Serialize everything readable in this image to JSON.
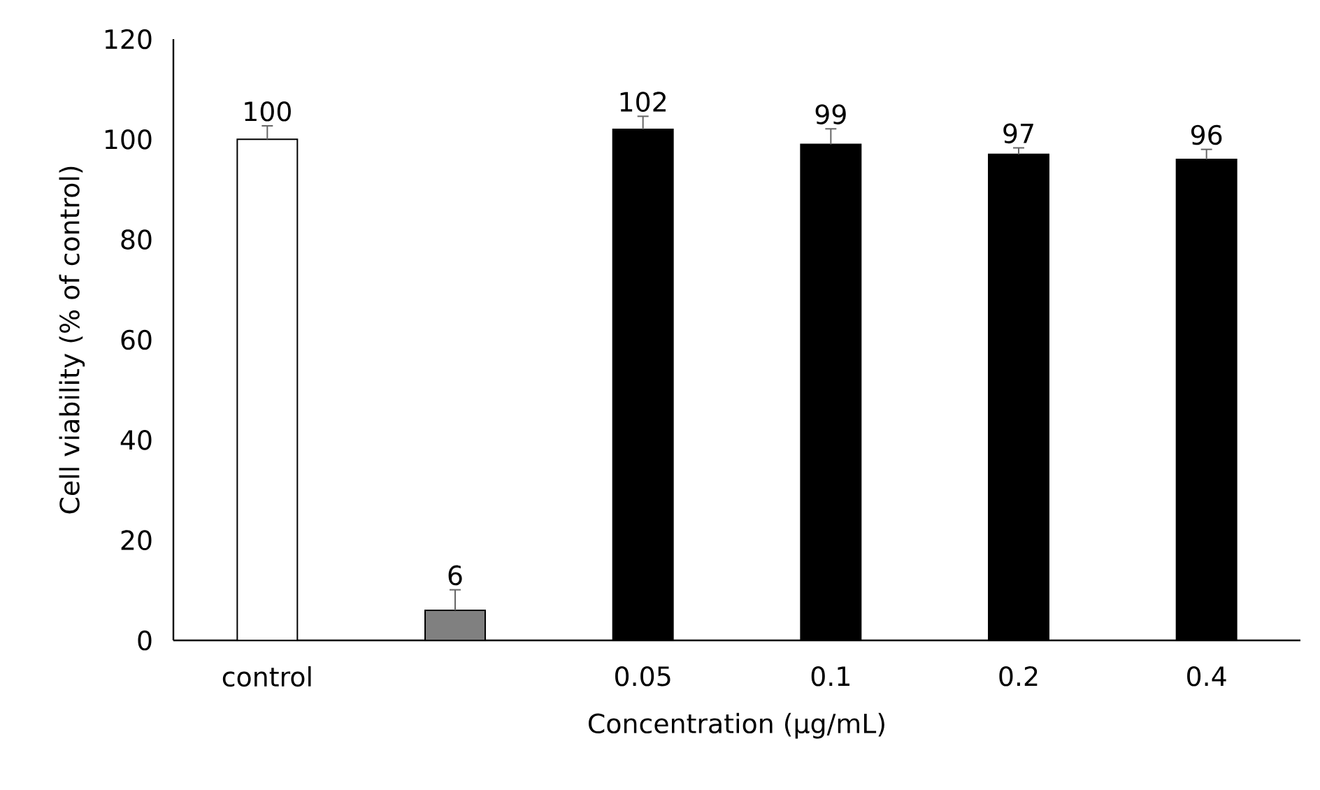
{
  "chart_data": {
    "type": "bar",
    "xlabel": "Concentration (µg/mL)",
    "ylabel": "Cell viability (% of control)",
    "categories": [
      "control",
      null,
      "0.05",
      "0.1",
      "0.2",
      "0.4"
    ],
    "values": [
      100,
      6,
      102,
      99,
      97,
      96
    ],
    "errors": [
      [
        100,
        102.7
      ],
      [
        6,
        10.1
      ],
      [
        102,
        104.6
      ],
      [
        99,
        102.1
      ],
      [
        97,
        98.3
      ],
      [
        96,
        98
      ]
    ],
    "colors": [
      "#ffffff",
      "#808080",
      "#000000",
      "#000000",
      "#000000",
      "#000000"
    ],
    "ylim": [
      0,
      120
    ],
    "yticks": [
      0,
      20,
      40,
      60,
      80,
      100,
      120
    ],
    "data_labels": true
  }
}
